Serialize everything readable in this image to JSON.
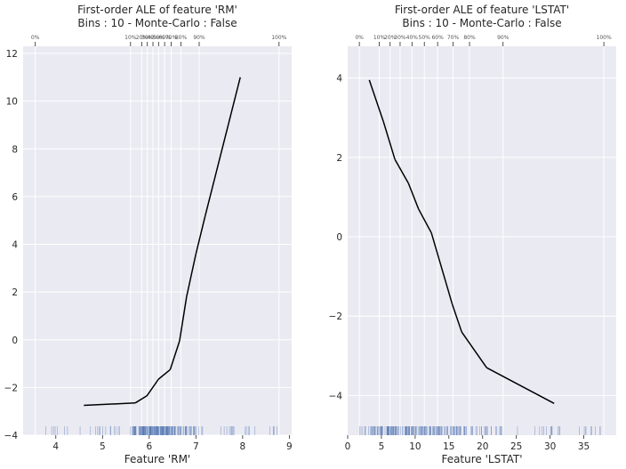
{
  "chart_data": [
    {
      "type": "line",
      "title": "First-order ALE of feature 'RM'",
      "subtitle": "Bins : 10 - Monte-Carlo : False",
      "xlabel": "Feature 'RM'",
      "ylabel": "",
      "xlim": [
        3.3,
        9.05
      ],
      "ylim": [
        -4.0,
        12.3
      ],
      "xticks": [
        4,
        5,
        6,
        7,
        8,
        9
      ],
      "yticks": [
        -4,
        -2,
        0,
        2,
        4,
        6,
        8,
        10,
        12
      ],
      "x": [
        4.6,
        5.7,
        5.95,
        6.2,
        6.45,
        6.65,
        6.8,
        7.0,
        7.2,
        7.95
      ],
      "y": [
        -2.75,
        -2.65,
        -2.35,
        -1.65,
        -1.25,
        -0.05,
        1.8,
        3.6,
        5.2,
        11.0
      ],
      "deciles": {
        "labels": [
          "0%",
          "10%",
          "20%",
          "30%",
          "40%",
          "50%",
          "60%",
          "70%",
          "80%",
          "90%",
          "100%"
        ],
        "values": [
          3.56,
          5.6,
          5.84,
          5.96,
          6.08,
          6.2,
          6.33,
          6.47,
          6.68,
          7.07,
          8.78
        ]
      },
      "grid": true,
      "style": {
        "background": "#EAEAF2",
        "line_color": "#000000",
        "rug_color": "#4C72B0"
      }
    },
    {
      "type": "line",
      "title": "First-order ALE of feature 'LSTAT'",
      "subtitle": "Bins : 10 - Monte-Carlo : False",
      "xlabel": "Feature 'LSTAT'",
      "ylabel": "",
      "xlim": [
        0,
        39.8
      ],
      "ylim": [
        -5.0,
        4.8
      ],
      "xticks": [
        0,
        5,
        10,
        15,
        20,
        25,
        30,
        35
      ],
      "yticks": [
        -4,
        -2,
        0,
        2,
        4
      ],
      "x": [
        3.2,
        5.3,
        7.0,
        9.0,
        10.5,
        12.4,
        15.5,
        16.9,
        20.6,
        30.6
      ],
      "y": [
        3.95,
        2.9,
        1.95,
        1.35,
        0.7,
        0.1,
        -1.7,
        -2.4,
        -3.3,
        -4.2
      ],
      "deciles": {
        "labels": [
          "0%",
          "10%",
          "20%",
          "30%",
          "40%",
          "50%",
          "60%",
          "70%",
          "80%",
          "90%",
          "100%"
        ],
        "values": [
          1.73,
          4.68,
          6.29,
          7.77,
          9.53,
          11.36,
          13.33,
          15.62,
          18.06,
          23.03,
          37.97
        ]
      },
      "grid": true,
      "style": {
        "background": "#EAEAF2",
        "line_color": "#000000",
        "rug_color": "#4C72B0"
      }
    }
  ]
}
